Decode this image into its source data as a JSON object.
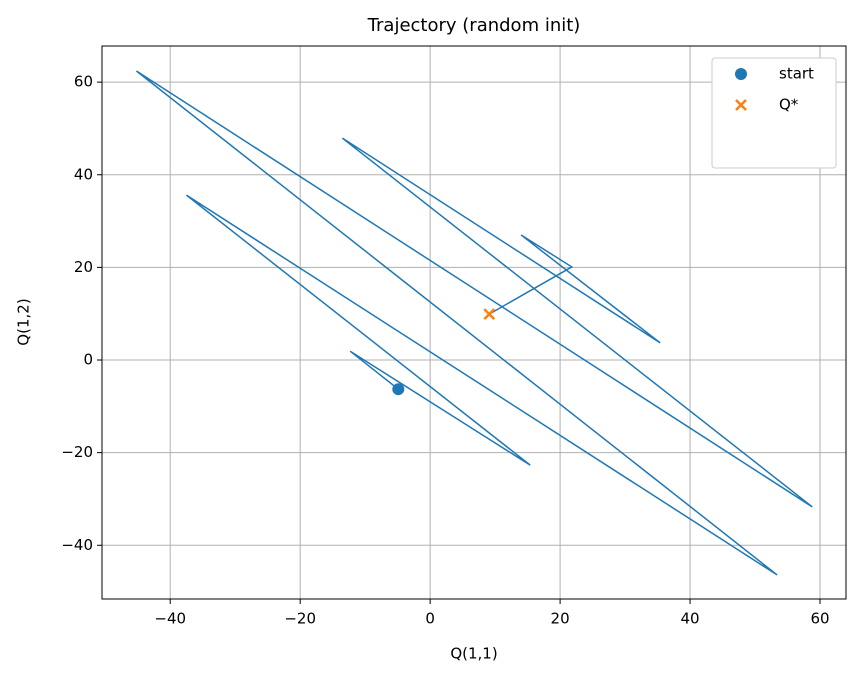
{
  "chart_data": {
    "type": "line",
    "title": "Trajectory (random init)",
    "xlabel": "Q(1,1)",
    "ylabel": "Q(1,2)",
    "xlim": [
      -50.5,
      64.0
    ],
    "ylim": [
      -51.6,
      67.8
    ],
    "xticks": [
      {
        "value": -40,
        "label": "−40"
      },
      {
        "value": -20,
        "label": "−20"
      },
      0,
      20,
      40,
      60
    ],
    "yticks": [
      {
        "value": -40,
        "label": "−40"
      },
      {
        "value": -20,
        "label": "−20"
      },
      0,
      20,
      40,
      60
    ],
    "grid": true,
    "legend": "upper right",
    "series": [
      {
        "color": "#1f77b4",
        "style": "line",
        "x": [
          -4.9,
          -12.3,
          15.4,
          -37.5,
          53.4,
          -45.2,
          58.8,
          -13.5,
          35.4,
          14.0,
          21.8,
          10.2,
          9.1
        ],
        "y": [
          -6.3,
          1.9,
          -22.7,
          35.6,
          -46.4,
          62.4,
          -31.7,
          47.9,
          3.7,
          27.0,
          20.1,
          10.8,
          9.9
        ]
      },
      {
        "name": "start",
        "color": "#1f77b4",
        "marker": "o",
        "x": [
          -4.9
        ],
        "y": [
          -6.3
        ]
      },
      {
        "name": "Q*",
        "color": "#ff7f0e",
        "marker": "x",
        "x": [
          9.1
        ],
        "y": [
          9.9
        ]
      }
    ]
  }
}
